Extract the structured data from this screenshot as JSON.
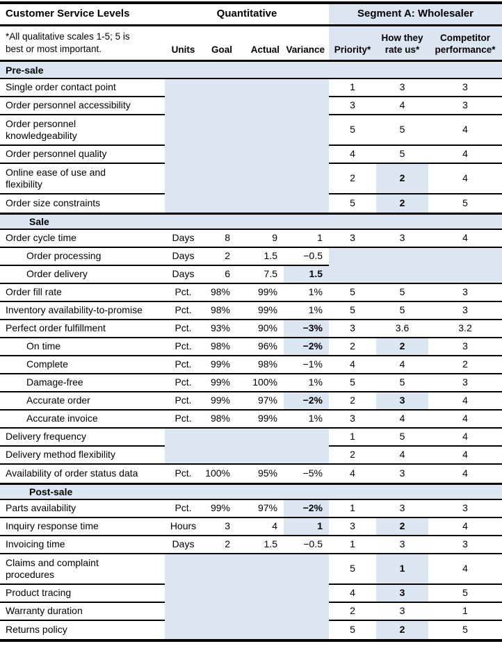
{
  "title": "Customer Service Levels",
  "colors": {
    "accent_blue": "#dce6f1",
    "border": "#000000"
  },
  "header": {
    "quant_group": "Quantitative",
    "segment_group": "Segment A: Wholesaler",
    "note_lines": [
      "*All qualitative scales 1-5; 5 is",
      "best or most important."
    ],
    "columns": {
      "units": "Units",
      "goal": "Goal",
      "actual": "Actual",
      "variance": "Variance",
      "priority": "Priority*",
      "rate_us_l1": "How they",
      "rate_us_l2": "rate us*",
      "competitor_l1": "Competitor",
      "competitor_l2": "performance*"
    }
  },
  "sections": [
    {
      "name": "Pre-sale",
      "indent_header": false,
      "rows": [
        {
          "label": "Single order contact point",
          "quant_blank": true,
          "priority": "1",
          "rate_us": "3",
          "competitor": "3"
        },
        {
          "label": "Order personnel accessibility",
          "quant_blank": true,
          "priority": "3",
          "rate_us": "4",
          "competitor": "3"
        },
        {
          "label": [
            "Order personnel",
            "knowledgeability"
          ],
          "tall": true,
          "quant_blank": true,
          "priority": "5",
          "rate_us": "5",
          "competitor": "4"
        },
        {
          "label": "Order personnel quality",
          "quant_blank": true,
          "priority": "4",
          "rate_us": "5",
          "competitor": "4"
        },
        {
          "label": [
            "Online ease of use and",
            "flexibility"
          ],
          "tall": true,
          "quant_blank": true,
          "priority": "2",
          "rate_us": "2",
          "rate_hl": true,
          "competitor": "4"
        },
        {
          "label": "Order size constraints",
          "quant_blank": true,
          "priority": "5",
          "rate_us": "2",
          "rate_hl": true,
          "competitor": "5"
        }
      ]
    },
    {
      "name": "Sale",
      "indent_header": true,
      "rows": [
        {
          "label": "Order cycle time",
          "units": "Days",
          "goal": "8",
          "actual": "9",
          "variance": "1",
          "priority": "3",
          "rate_us": "3",
          "competitor": "4"
        },
        {
          "label": "Order processing",
          "indent": true,
          "units": "Days",
          "goal": "2",
          "actual": "1.5",
          "variance": "−0.5",
          "rating_blank": true
        },
        {
          "label": "Order delivery",
          "indent": true,
          "units": "Days",
          "goal": "6",
          "actual": "7.5",
          "variance": "1.5",
          "variance_hl": true,
          "rating_blank": true
        },
        {
          "label": "Order fill rate",
          "units": "Pct.",
          "goal": "98%",
          "actual": "99%",
          "variance": "1%",
          "priority": "5",
          "rate_us": "5",
          "competitor": "3"
        },
        {
          "label": "Inventory availability-to-promise",
          "units": "Pct.",
          "goal": "98%",
          "actual": "99%",
          "variance": "1%",
          "priority": "5",
          "rate_us": "5",
          "competitor": "3"
        },
        {
          "label": "Perfect order fulfillment",
          "units": "Pct.",
          "goal": "93%",
          "actual": "90%",
          "variance": "−3%",
          "variance_hl": true,
          "priority": "3",
          "rate_us": "3.6",
          "competitor": "3.2"
        },
        {
          "label": "On time",
          "indent": true,
          "units": "Pct.",
          "goal": "98%",
          "actual": "96%",
          "variance": "−2%",
          "variance_hl": true,
          "priority": "2",
          "rate_us": "2",
          "rate_hl": true,
          "competitor": "3"
        },
        {
          "label": "Complete",
          "indent": true,
          "units": "Pct.",
          "goal": "99%",
          "actual": "98%",
          "variance": "−1%",
          "priority": "4",
          "rate_us": "4",
          "competitor": "2"
        },
        {
          "label": "Damage-free",
          "indent": true,
          "units": "Pct.",
          "goal": "99%",
          "actual": "100%",
          "variance": "1%",
          "priority": "5",
          "rate_us": "5",
          "competitor": "3"
        },
        {
          "label": "Accurate order",
          "indent": true,
          "units": "Pct.",
          "goal": "99%",
          "actual": "97%",
          "variance": "−2%",
          "variance_hl": true,
          "priority": "2",
          "rate_us": "3",
          "rate_hl": true,
          "competitor": "4"
        },
        {
          "label": "Accurate invoice",
          "indent": true,
          "units": "Pct.",
          "goal": "98%",
          "actual": "99%",
          "variance": "1%",
          "priority": "3",
          "rate_us": "4",
          "competitor": "4"
        },
        {
          "label": "Delivery frequency",
          "quant_blank": true,
          "priority": "1",
          "rate_us": "5",
          "competitor": "4"
        },
        {
          "label": "Delivery method flexibility",
          "quant_blank": true,
          "priority": "2",
          "rate_us": "4",
          "competitor": "4"
        },
        {
          "label": "Availability of order status data",
          "units": "Pct.",
          "goal": "100%",
          "actual": "95%",
          "variance": "−5%",
          "priority": "4",
          "rate_us": "3",
          "competitor": "4"
        }
      ]
    },
    {
      "name": "Post-sale",
      "indent_header": true,
      "rows": [
        {
          "label": "Parts availability",
          "units": "Pct.",
          "goal": "99%",
          "actual": "97%",
          "variance": "−2%",
          "variance_hl": true,
          "priority": "1",
          "rate_us": "3",
          "competitor": "3"
        },
        {
          "label": "Inquiry response time",
          "units": "Hours",
          "goal": "3",
          "actual": "4",
          "variance": "1",
          "variance_hl": true,
          "priority": "3",
          "rate_us": "2",
          "rate_hl": true,
          "competitor": "4"
        },
        {
          "label": "Invoicing time",
          "units": "Days",
          "goal": "2",
          "actual": "1.5",
          "variance": "−0.5",
          "priority": "1",
          "rate_us": "3",
          "competitor": "3"
        },
        {
          "label": [
            "Claims and complaint",
            "procedures"
          ],
          "tall": true,
          "quant_blank": true,
          "priority": "5",
          "rate_us": "1",
          "rate_hl": true,
          "competitor": "4"
        },
        {
          "label": "Product tracing",
          "quant_blank": true,
          "priority": "4",
          "rate_us": "3",
          "rate_hl": true,
          "competitor": "5"
        },
        {
          "label": "Warranty duration",
          "quant_blank": true,
          "priority": "2",
          "rate_us": "3",
          "competitor": "1"
        },
        {
          "label": "Returns policy",
          "quant_blank": true,
          "priority": "5",
          "rate_us": "2",
          "rate_hl": true,
          "competitor": "5"
        }
      ]
    }
  ]
}
